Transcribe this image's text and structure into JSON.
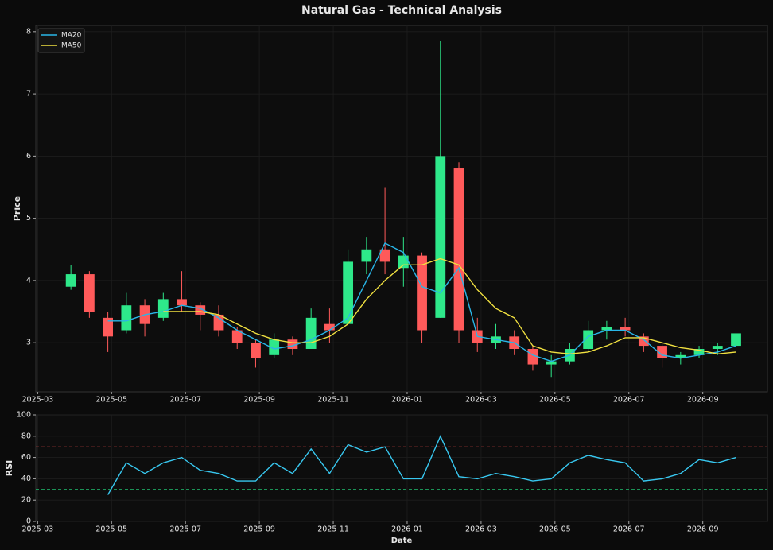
{
  "chart_data": [
    {
      "type": "candlestick",
      "title": "Natural Gas - Technical Analysis",
      "ylabel": "Price",
      "x": [
        0.9,
        1.4,
        1.9,
        2.4,
        2.9,
        3.4,
        3.9,
        4.4,
        4.9,
        5.4,
        5.9,
        6.4,
        6.9,
        7.4,
        7.9,
        8.4,
        8.9,
        9.4,
        9.9,
        10.4,
        10.9,
        11.4,
        11.9,
        12.4,
        12.9,
        13.4,
        13.9,
        14.4,
        14.9,
        15.4,
        15.9,
        16.4,
        16.9,
        17.4,
        17.9,
        18.4,
        18.9
      ],
      "open": [
        3.9,
        4.1,
        3.4,
        3.2,
        3.6,
        3.4,
        3.7,
        3.6,
        3.45,
        3.2,
        3.0,
        2.8,
        3.05,
        2.9,
        3.3,
        3.3,
        4.3,
        4.5,
        4.2,
        4.4,
        3.4,
        5.8,
        3.2,
        3.0,
        3.1,
        2.9,
        2.65,
        2.7,
        2.9,
        3.2,
        3.25,
        3.1,
        2.95,
        2.75,
        2.8,
        2.9,
        2.95
      ],
      "high": [
        4.25,
        4.15,
        3.5,
        3.8,
        3.7,
        3.8,
        4.15,
        3.65,
        3.6,
        3.25,
        3.05,
        3.15,
        3.1,
        3.55,
        3.55,
        4.5,
        4.7,
        5.5,
        4.7,
        4.45,
        7.85,
        5.9,
        3.4,
        3.3,
        3.2,
        2.95,
        2.8,
        3.0,
        3.35,
        3.35,
        3.4,
        3.15,
        3.0,
        2.85,
        2.95,
        3.0,
        3.3
      ],
      "low": [
        3.85,
        3.4,
        2.85,
        3.15,
        3.1,
        3.35,
        3.5,
        3.2,
        3.1,
        2.9,
        2.6,
        2.75,
        2.8,
        2.9,
        3.0,
        3.3,
        4.1,
        4.1,
        3.9,
        3.0,
        3.4,
        3.0,
        2.85,
        2.9,
        2.8,
        2.55,
        2.45,
        2.65,
        2.85,
        3.05,
        3.1,
        2.85,
        2.6,
        2.65,
        2.75,
        2.8,
        2.9
      ],
      "close": [
        4.1,
        3.5,
        3.1,
        3.6,
        3.3,
        3.7,
        3.6,
        3.45,
        3.2,
        3.0,
        2.75,
        3.05,
        2.9,
        3.4,
        3.2,
        4.3,
        4.5,
        4.3,
        4.4,
        3.2,
        6.0,
        3.2,
        3.0,
        3.1,
        2.9,
        2.65,
        2.7,
        2.9,
        3.2,
        3.25,
        3.2,
        2.95,
        2.75,
        2.8,
        2.9,
        2.95,
        3.15
      ],
      "up_color": "#2ee88a",
      "down_color": "#ff5a5a",
      "series": [
        {
          "name": "MA20",
          "color": "#29b6e8",
          "values": [
            null,
            null,
            3.35,
            3.35,
            3.45,
            3.5,
            3.6,
            3.55,
            3.4,
            3.2,
            3.05,
            2.9,
            2.95,
            3.05,
            3.2,
            3.4,
            4.0,
            4.6,
            4.45,
            3.9,
            3.8,
            4.2,
            3.1,
            3.05,
            3.0,
            2.8,
            2.7,
            2.8,
            3.1,
            3.2,
            3.2,
            3.05,
            2.8,
            2.75,
            2.8,
            2.85,
            2.95
          ]
        },
        {
          "name": "MA50",
          "color": "#f0e040",
          "values": [
            null,
            null,
            null,
            null,
            null,
            3.5,
            3.5,
            3.5,
            3.45,
            3.3,
            3.15,
            3.05,
            3.0,
            3.0,
            3.1,
            3.3,
            3.7,
            4.0,
            4.25,
            4.25,
            4.35,
            4.25,
            3.85,
            3.55,
            3.4,
            2.95,
            2.85,
            2.82,
            2.85,
            2.95,
            3.08,
            3.08,
            3.0,
            2.92,
            2.88,
            2.82,
            2.85
          ]
        }
      ],
      "xlim": [
        -0.05,
        19.75
      ],
      "ylim": [
        2.21,
        8.1
      ],
      "yticks": [
        3,
        4,
        5,
        6,
        7,
        8
      ],
      "xticks": [
        {
          "value": 0,
          "label": "2025-03"
        },
        {
          "value": 2,
          "label": "2025-05"
        },
        {
          "value": 4,
          "label": "2025-07"
        },
        {
          "value": 6,
          "label": "2025-09"
        },
        {
          "value": 8,
          "label": "2025-11"
        },
        {
          "value": 10,
          "label": "2026-01"
        },
        {
          "value": 12,
          "label": "2026-03"
        },
        {
          "value": 14,
          "label": "2026-05"
        },
        {
          "value": 16,
          "label": "2026-07"
        },
        {
          "value": 18,
          "label": "2026-09"
        }
      ],
      "grid": true,
      "legend": "upper left"
    },
    {
      "type": "line",
      "ylabel": "RSI",
      "xlabel": "Date",
      "color": "#38c8f0",
      "x": [
        0.9,
        1.4,
        1.9,
        2.4,
        2.9,
        3.4,
        3.9,
        4.4,
        4.9,
        5.4,
        5.9,
        6.4,
        6.9,
        7.4,
        7.9,
        8.4,
        8.9,
        9.4,
        9.9,
        10.4,
        10.9,
        11.4,
        11.9,
        12.4,
        12.9,
        13.4,
        13.9,
        14.4,
        14.9,
        15.4,
        15.9,
        16.4,
        16.9,
        17.4,
        17.9,
        18.4,
        18.9
      ],
      "values": [
        null,
        null,
        25,
        55,
        45,
        55,
        60,
        48,
        45,
        38,
        38,
        55,
        45,
        68,
        45,
        72,
        65,
        70,
        40,
        40,
        80,
        42,
        40,
        45,
        42,
        38,
        40,
        55,
        62,
        58,
        55,
        38,
        40,
        45,
        58,
        55,
        60
      ],
      "hlines": [
        {
          "value": 70,
          "color": "#d04040"
        },
        {
          "value": 30,
          "color": "#20c070"
        }
      ],
      "xlim": [
        -0.05,
        19.75
      ],
      "ylim": [
        0,
        100
      ],
      "yticks": [
        0,
        20,
        40,
        60,
        80,
        100
      ],
      "xticks": [
        {
          "value": 0,
          "label": "2025-03"
        },
        {
          "value": 2,
          "label": "2025-05"
        },
        {
          "value": 4,
          "label": "2025-07"
        },
        {
          "value": 6,
          "label": "2025-09"
        },
        {
          "value": 8,
          "label": "2025-11"
        },
        {
          "value": 10,
          "label": "2026-01"
        },
        {
          "value": 12,
          "label": "2026-03"
        },
        {
          "value": 14,
          "label": "2026-05"
        },
        {
          "value": 16,
          "label": "2026-07"
        },
        {
          "value": 18,
          "label": "2026-09"
        }
      ],
      "grid": true
    }
  ]
}
